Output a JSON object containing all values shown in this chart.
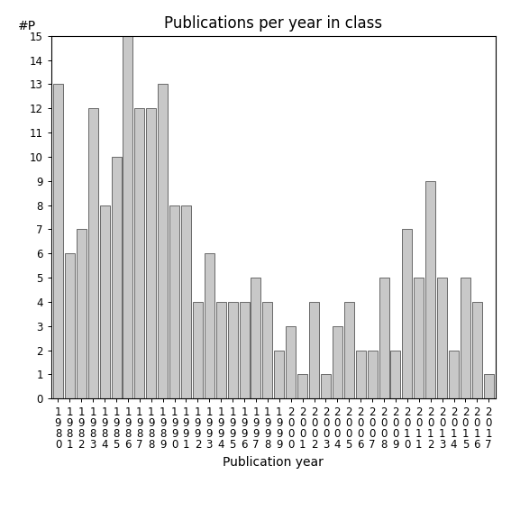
{
  "title": "Publications per year in class",
  "xlabel": "Publication year",
  "ylabel": "#P",
  "years": [
    1980,
    1981,
    1982,
    1983,
    1984,
    1985,
    1986,
    1987,
    1988,
    1989,
    1990,
    1991,
    1992,
    1993,
    1994,
    1995,
    1996,
    1997,
    1998,
    1999,
    2000,
    2001,
    2002,
    2003,
    2004,
    2005,
    2006,
    2007,
    2008,
    2009,
    2010,
    2011,
    2012,
    2013,
    2014,
    2015,
    2016,
    2017
  ],
  "values": [
    13,
    6,
    7,
    12,
    8,
    10,
    15,
    12,
    12,
    13,
    8,
    8,
    4,
    6,
    4,
    4,
    4,
    5,
    4,
    2,
    3,
    1,
    4,
    1,
    3,
    4,
    2,
    2,
    5,
    2,
    7,
    5,
    9,
    5,
    2,
    5,
    4,
    1
  ],
  "bar_color": "#c8c8c8",
  "bar_edge_color": "#555555",
  "ylim": [
    0,
    15
  ],
  "yticks": [
    0,
    1,
    2,
    3,
    4,
    5,
    6,
    7,
    8,
    9,
    10,
    11,
    12,
    13,
    14,
    15
  ],
  "title_fontsize": 12,
  "label_fontsize": 10,
  "tick_fontsize": 8.5
}
